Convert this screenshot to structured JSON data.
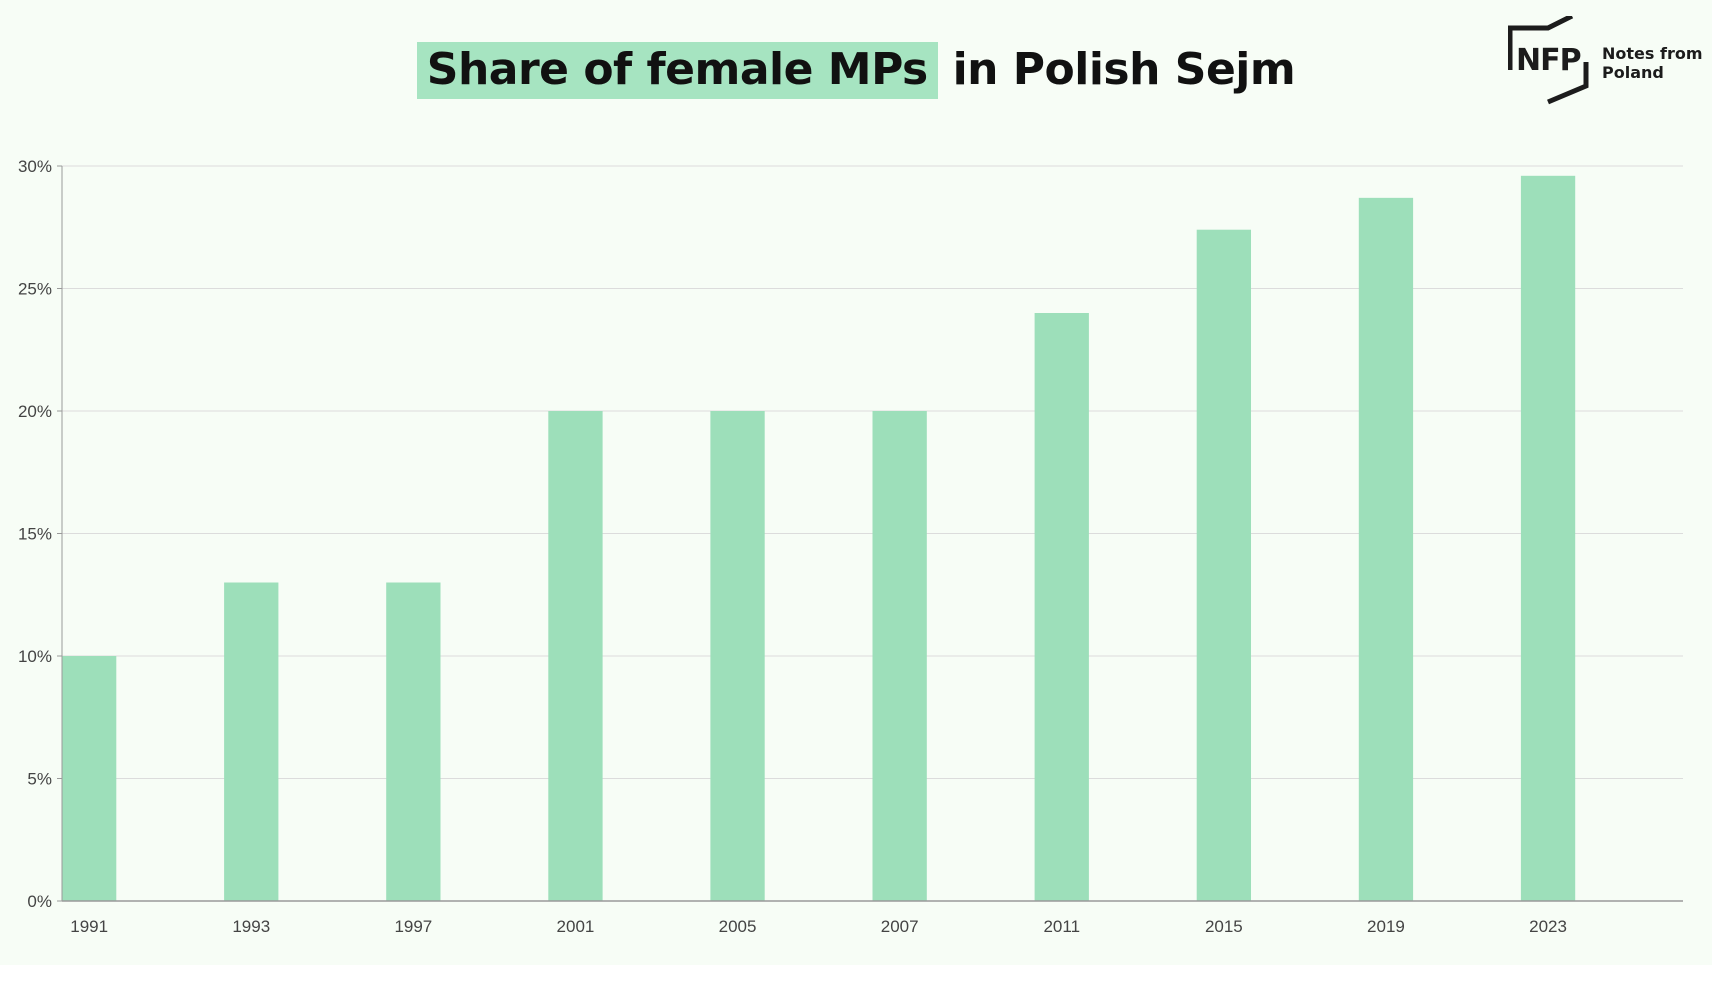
{
  "title": {
    "highlighted": "Share of female MPs",
    "rest": "in Polish Sejm"
  },
  "logo": {
    "mark": "NFP",
    "line1": "Notes from",
    "line2": "Poland"
  },
  "colors": {
    "bar": "#9ddfba",
    "highlight": "#a6e4c1",
    "grid": "#dcdcdc",
    "axis": "#9a9a9a"
  },
  "chart_data": {
    "type": "bar",
    "title": "Share of female MPs in Polish Sejm",
    "xlabel": "",
    "ylabel": "",
    "categories": [
      "1991",
      "1993",
      "1997",
      "2001",
      "2005",
      "2007",
      "2011",
      "2015",
      "2019",
      "2023"
    ],
    "values": [
      10,
      13,
      13,
      20,
      20,
      20,
      24,
      27.4,
      28.7,
      29.6
    ],
    "ylim": [
      0,
      30
    ],
    "yticks": [
      "0%",
      "5%",
      "10%",
      "15%",
      "20%",
      "25%",
      "30%"
    ],
    "grid": true,
    "legend": "none"
  }
}
